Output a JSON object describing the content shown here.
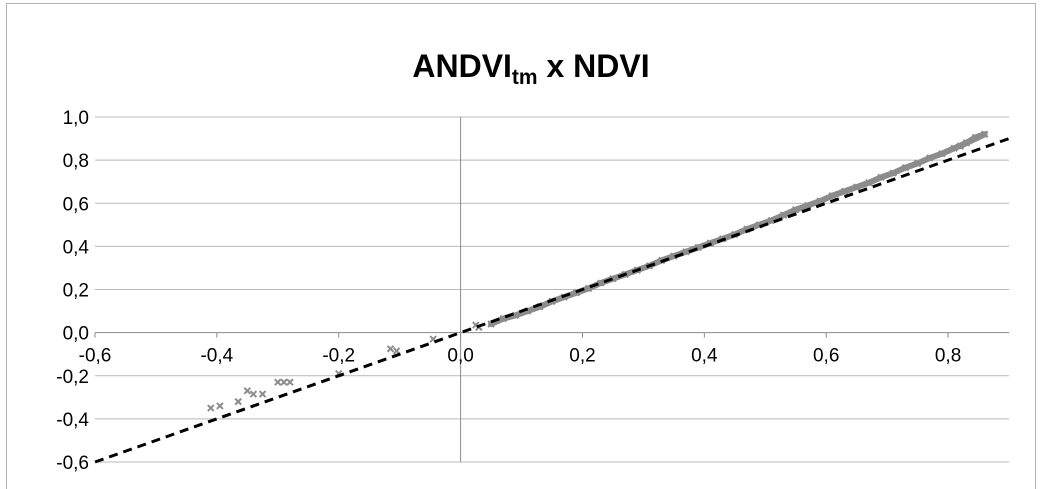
{
  "chart_data": {
    "type": "scatter",
    "title": {
      "main": "ANDVI",
      "sub": "tm",
      "rest": " x NDVI"
    },
    "xlabel": "",
    "ylabel": "",
    "xlim": [
      -0.6,
      0.9
    ],
    "ylim": [
      -0.6,
      1.0
    ],
    "x_ticks": [
      -0.6,
      -0.4,
      -0.2,
      0.0,
      0.2,
      0.4,
      0.6,
      0.8
    ],
    "x_tick_labels": [
      "-0,6",
      "-0,4",
      "-0,2",
      "0,0",
      "0,2",
      "0,4",
      "0,6",
      "0,8"
    ],
    "y_ticks": [
      -0.6,
      -0.4,
      -0.2,
      0.0,
      0.2,
      0.4,
      0.6,
      0.8,
      1.0
    ],
    "y_tick_labels": [
      "-0,6",
      "-0,4",
      "-0,2",
      "0,0",
      "0,2",
      "0,4",
      "0,6",
      "0,8",
      "1,0"
    ],
    "grid": {
      "horizontal": true,
      "vertical": false
    },
    "series": [
      {
        "marker": "x",
        "color": "#8c8c8c",
        "points": [
          [
            -0.41,
            -0.35
          ],
          [
            -0.395,
            -0.34
          ],
          [
            -0.365,
            -0.32
          ],
          [
            -0.35,
            -0.27
          ],
          [
            -0.34,
            -0.285
          ],
          [
            -0.325,
            -0.285
          ],
          [
            -0.3,
            -0.23
          ],
          [
            -0.29,
            -0.23
          ],
          [
            -0.28,
            -0.23
          ],
          [
            -0.2,
            -0.19
          ],
          [
            -0.115,
            -0.075
          ],
          [
            -0.105,
            -0.085
          ],
          [
            -0.045,
            -0.03
          ],
          [
            0.025,
            0.035
          ],
          [
            0.03,
            0.025
          ],
          [
            0.05,
            0.04
          ],
          [
            0.07,
            0.065
          ],
          [
            0.09,
            0.08
          ],
          [
            0.11,
            0.1
          ],
          [
            0.13,
            0.12
          ],
          [
            0.15,
            0.145
          ],
          [
            0.17,
            0.165
          ],
          [
            0.19,
            0.185
          ],
          [
            0.21,
            0.205
          ],
          [
            0.23,
            0.23
          ],
          [
            0.25,
            0.25
          ],
          [
            0.27,
            0.27
          ],
          [
            0.29,
            0.29
          ],
          [
            0.31,
            0.31
          ],
          [
            0.33,
            0.335
          ],
          [
            0.35,
            0.355
          ],
          [
            0.37,
            0.375
          ],
          [
            0.39,
            0.395
          ],
          [
            0.41,
            0.415
          ],
          [
            0.43,
            0.435
          ],
          [
            0.45,
            0.455
          ],
          [
            0.47,
            0.48
          ],
          [
            0.49,
            0.5
          ],
          [
            0.51,
            0.52
          ],
          [
            0.53,
            0.545
          ],
          [
            0.55,
            0.57
          ],
          [
            0.57,
            0.59
          ],
          [
            0.59,
            0.61
          ],
          [
            0.61,
            0.635
          ],
          [
            0.63,
            0.655
          ],
          [
            0.65,
            0.675
          ],
          [
            0.67,
            0.695
          ],
          [
            0.69,
            0.72
          ],
          [
            0.71,
            0.74
          ],
          [
            0.73,
            0.765
          ],
          [
            0.75,
            0.785
          ],
          [
            0.77,
            0.81
          ],
          [
            0.79,
            0.83
          ],
          [
            0.81,
            0.855
          ],
          [
            0.83,
            0.88
          ],
          [
            0.845,
            0.905
          ],
          [
            0.86,
            0.92
          ],
          [
            0.82,
            0.865
          ]
        ]
      },
      {
        "line_style": "dashed",
        "color": "#000000",
        "points": [
          [
            -0.6,
            -0.6
          ],
          [
            0.9,
            0.9
          ]
        ]
      }
    ]
  }
}
